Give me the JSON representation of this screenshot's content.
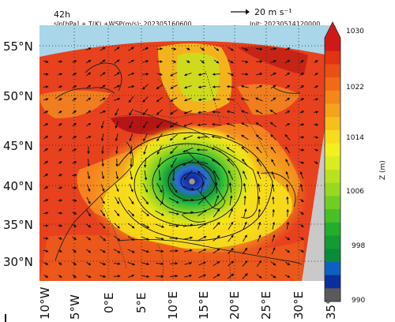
{
  "header": {
    "lead_time": "42h",
    "subtitle": "slp[hPa] + T(K) +WSP(m/s): 202305160600",
    "init": "Init: 20230514120000",
    "reference_vector_label": "20 m s⁻¹"
  },
  "map": {
    "latitude_labels": [
      "55°N",
      "50°N",
      "45°N",
      "40°N",
      "35°N",
      "30°N"
    ],
    "longitude_labels": [
      "10°W",
      "5°W",
      "0°E",
      "5°E",
      "10°E",
      "15°E",
      "20°E",
      "25°E",
      "30°E",
      "35°E"
    ],
    "low_center": {
      "lon": 13.5,
      "lat": 40.3
    },
    "colors": {
      "sea": "#a9d6e8",
      "land": "#c9c9c9",
      "warm": "#e8411e",
      "dark_red": "#b51515",
      "orange": "#f5821e",
      "yellow": "#f7e21a",
      "yellow_green": "#c6e41e",
      "green": "#2fbf3a",
      "dark_green": "#13873a",
      "blue": "#2b5ad9",
      "dark_blue": "#0a1f8f"
    }
  },
  "colorbar": {
    "unit": "Z (m)",
    "tick_labels": [
      "1030",
      "1022",
      "1014",
      "1006",
      "998",
      "990"
    ],
    "colors": [
      "#d11818",
      "#e23312",
      "#ea4f15",
      "#f06a18",
      "#f3871a",
      "#f5a21c",
      "#f7bf1c",
      "#f6dc1c",
      "#f3f01c",
      "#d8ec1e",
      "#b9e21e",
      "#98d81f",
      "#72cc21",
      "#48bf25",
      "#23ad2d",
      "#149a34",
      "#0c8a3c",
      "#0d5fc2",
      "#0a2e9b",
      "#5a5a5a"
    ]
  }
}
